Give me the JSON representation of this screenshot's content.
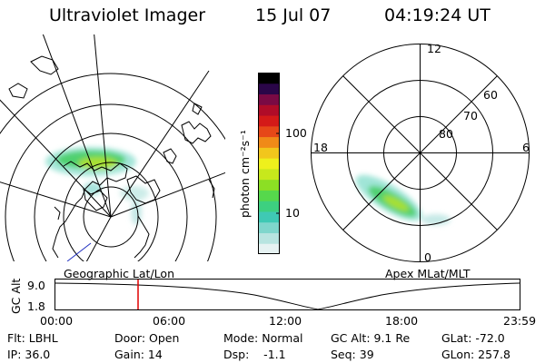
{
  "header": {
    "instrument": "Ultraviolet Imager",
    "date": "15 Jul 07",
    "time": "04:19:24 UT"
  },
  "left_panel": {
    "caption": "Geographic Lat/Lon"
  },
  "right_panel": {
    "caption": "Apex MLat/MLT",
    "mlt_labels": {
      "top": "12",
      "left": "18",
      "right": "6",
      "bottom": "0"
    },
    "lat_labels": [
      "60",
      "70",
      "80"
    ]
  },
  "colorbar": {
    "unit_label": "photon cm⁻²s⁻¹",
    "ticks": [
      "100",
      "10"
    ],
    "scale": "log",
    "colors": [
      "#e6f2f2",
      "#b8e4e0",
      "#7fd6cc",
      "#3fc9b4",
      "#3dd080",
      "#56d84c",
      "#8cdf24",
      "#c7e81c",
      "#eef01c",
      "#f2c61c",
      "#f08a18",
      "#e64818",
      "#d41a18",
      "#b00c28",
      "#7a0a44",
      "#2a0648",
      "#000000"
    ]
  },
  "altitude_plot": {
    "ylabel": "GC Alt",
    "yticks": [
      "9.0",
      "1.8"
    ],
    "xticks": [
      "00:00",
      "06:00",
      "12:00",
      "18:00",
      "23:59"
    ],
    "marker_time": "04:19:24",
    "marker_color": "#e00000"
  },
  "status": {
    "flt": "Flt: LBHL",
    "ip": "IP: 36.0",
    "door": "Door: Open",
    "gain": "Gain: 14",
    "mode": "Mode: Normal",
    "dsp": "Dsp:    -1.1",
    "gcalt": "GC Alt: 9.1 Re",
    "seq": "Seq: 39",
    "glat": "GLat: -72.0",
    "glon": "GLon: 257.8"
  }
}
